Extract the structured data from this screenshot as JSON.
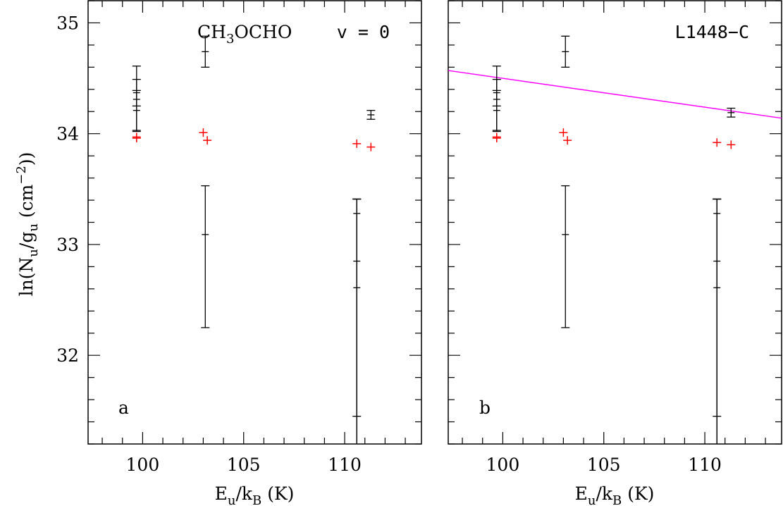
{
  "ylabel_parts": {
    "a": "ln(N",
    "b": "u",
    "c": "/g",
    "d": "u",
    "e": " (cm",
    "f": "−2",
    "g": "))"
  },
  "xlabel_parts": {
    "a": "E",
    "b": "u",
    "c": "/k",
    "d": "B",
    "e": " (K)"
  },
  "chart_data": [
    {
      "type": "scatter",
      "panel_letter": "a",
      "label_left_parts": {
        "a": "CH",
        "b": "3",
        "c": "OCHO"
      },
      "label_right": "v = 0",
      "xlim": [
        97.3,
        113.8
      ],
      "ylim": [
        31.2,
        35.2
      ],
      "xticks": [
        100,
        105,
        110
      ],
      "yticks": [
        32,
        33,
        34,
        35
      ],
      "error_points": [
        {
          "x": 99.7,
          "y": 34.21,
          "low": 34.03,
          "high": 34.39
        },
        {
          "x": 99.7,
          "y": 34.31,
          "low": 34.02,
          "high": 34.61
        },
        {
          "x": 99.7,
          "y": 34.37,
          "low": 34.25,
          "high": 34.49
        },
        {
          "x": 103.1,
          "y": 34.74,
          "low": 34.6,
          "high": 34.88
        },
        {
          "x": 103.1,
          "y": 33.09,
          "low": 32.25,
          "high": 33.53
        },
        {
          "x": 110.6,
          "y": 33.28,
          "low": 31.45,
          "high": 33.41
        },
        {
          "x": 110.6,
          "y": 32.85,
          "low": 31.2,
          "high": 33.41
        },
        {
          "x": 110.6,
          "y": 32.61,
          "low": 31.2,
          "high": 33.41
        },
        {
          "x": 111.3,
          "y": 34.17,
          "low": 34.13,
          "high": 34.21
        }
      ],
      "model_points": [
        {
          "x": 99.7,
          "y": 33.97
        },
        {
          "x": 99.7,
          "y": 33.96
        },
        {
          "x": 103.0,
          "y": 34.01
        },
        {
          "x": 103.2,
          "y": 33.94
        },
        {
          "x": 110.6,
          "y": 33.91
        },
        {
          "x": 111.3,
          "y": 33.88
        }
      ],
      "model_color": "#ff0000"
    },
    {
      "type": "scatter",
      "panel_letter": "b",
      "label_right": "L1448−C",
      "xlim": [
        97.3,
        113.8
      ],
      "ylim": [
        31.2,
        35.2
      ],
      "xticks": [
        100,
        105,
        110
      ],
      "yticks": [
        32,
        33,
        34,
        35
      ],
      "error_points": [
        {
          "x": 99.7,
          "y": 34.21,
          "low": 34.03,
          "high": 34.39
        },
        {
          "x": 99.7,
          "y": 34.31,
          "low": 34.02,
          "high": 34.61
        },
        {
          "x": 99.7,
          "y": 34.37,
          "low": 34.25,
          "high": 34.49
        },
        {
          "x": 103.1,
          "y": 34.74,
          "low": 34.6,
          "high": 34.88
        },
        {
          "x": 103.1,
          "y": 33.09,
          "low": 32.25,
          "high": 33.53
        },
        {
          "x": 110.6,
          "y": 33.28,
          "low": 31.45,
          "high": 33.41
        },
        {
          "x": 110.6,
          "y": 32.85,
          "low": 31.2,
          "high": 33.41
        },
        {
          "x": 110.6,
          "y": 32.61,
          "low": 31.2,
          "high": 33.41
        },
        {
          "x": 111.3,
          "y": 34.19,
          "low": 34.15,
          "high": 34.23
        }
      ],
      "model_points": [
        {
          "x": 99.7,
          "y": 33.97
        },
        {
          "x": 99.7,
          "y": 33.96
        },
        {
          "x": 103.0,
          "y": 34.01
        },
        {
          "x": 103.2,
          "y": 33.94
        },
        {
          "x": 110.6,
          "y": 33.92
        },
        {
          "x": 111.3,
          "y": 33.9
        }
      ],
      "model_color": "#ff0000",
      "fit_line": {
        "x": [
          97.3,
          113.8
        ],
        "y": [
          34.57,
          34.14
        ]
      },
      "fit_color": "#ff00ff"
    }
  ]
}
